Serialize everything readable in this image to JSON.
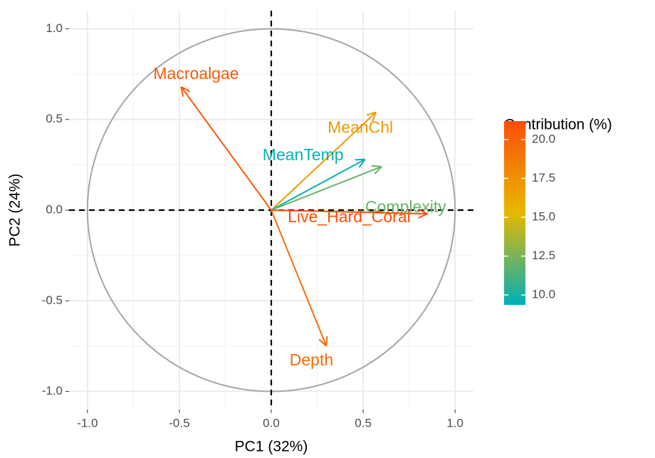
{
  "chart_data": {
    "type": "pca-variables",
    "xlabel": "PC1 (32%)",
    "ylabel": "PC2 (24%)",
    "xlim": [
      -1.1,
      1.1
    ],
    "ylim": [
      -1.1,
      1.1
    ],
    "xticks": [
      {
        "value": -1,
        "label": "-1.0"
      },
      {
        "value": -0.5,
        "label": "-0.5"
      },
      {
        "value": 0,
        "label": "0.0"
      },
      {
        "value": 0.5,
        "label": "0.5"
      },
      {
        "value": 1,
        "label": "1.0"
      }
    ],
    "yticks": [
      {
        "value": -1,
        "label": "-1.0"
      },
      {
        "value": -0.5,
        "label": "-0.5"
      },
      {
        "value": 0,
        "label": "0.0"
      },
      {
        "value": 0.5,
        "label": "0.5"
      },
      {
        "value": 1,
        "label": "1.0"
      }
    ],
    "grid": true,
    "legend_title": "Contribution (%)",
    "colors": [
      "#00AFBB",
      "#E7B800",
      "#FC4E07"
    ],
    "clim": [
      9.36,
      21.19
    ],
    "cticks": [
      {
        "value": 10,
        "label": "10.0"
      },
      {
        "value": 12.5,
        "label": "12.5"
      },
      {
        "value": 15,
        "label": "15.0"
      },
      {
        "value": 17.5,
        "label": "17.5"
      },
      {
        "value": 20,
        "label": "20.0"
      }
    ],
    "variables": [
      {
        "name": "Macroalgae",
        "x": -0.49,
        "y": 0.68,
        "contribution": 20.6
      },
      {
        "name": "MeanChl",
        "x": 0.57,
        "y": 0.54,
        "contribution": 17
      },
      {
        "name": "MeanTemp",
        "x": 0.51,
        "y": 0.28,
        "contribution": 9.6
      },
      {
        "name": "Complexity",
        "x": 0.6,
        "y": 0.24,
        "contribution": 12
      },
      {
        "name": "Live_Hard_Coral",
        "x": 0.85,
        "y": -0.02,
        "contribution": 21.1
      },
      {
        "name": "Depth",
        "x": 0.3,
        "y": -0.75,
        "contribution": 19.5
      }
    ]
  }
}
